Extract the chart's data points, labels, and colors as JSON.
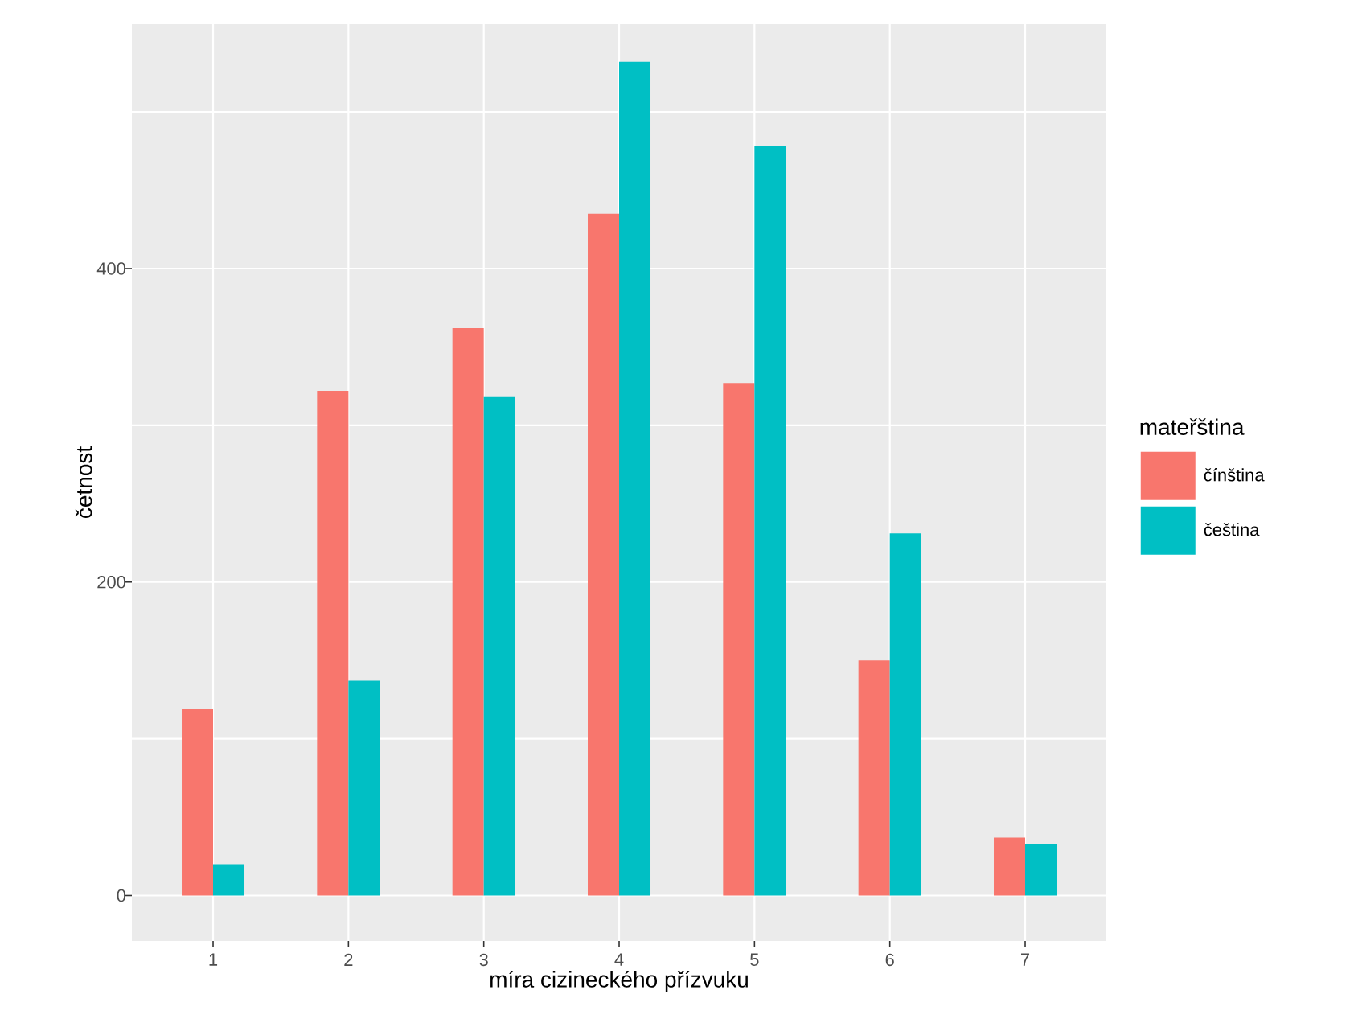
{
  "chart_data": {
    "type": "bar",
    "xlabel": "míra cizineckého přízvuku",
    "ylabel": "četnost",
    "legend_title": "mateřština",
    "categories": [
      "1",
      "2",
      "3",
      "4",
      "5",
      "6",
      "7"
    ],
    "series": [
      {
        "name": "čínština",
        "color": "#f8766d",
        "values": [
          119,
          322,
          362,
          435,
          327,
          150,
          37
        ]
      },
      {
        "name": "čeština",
        "color": "#00bfc4",
        "values": [
          20,
          137,
          318,
          532,
          478,
          231,
          33
        ]
      }
    ],
    "ylim": [
      -29,
      556
    ],
    "yticks": [
      0,
      {
        "value": 100,
        "label": null
      },
      200,
      {
        "value": 300,
        "label": null
      },
      400,
      {
        "value": 500,
        "label": null
      }
    ],
    "grid": true,
    "legend": "right"
  }
}
